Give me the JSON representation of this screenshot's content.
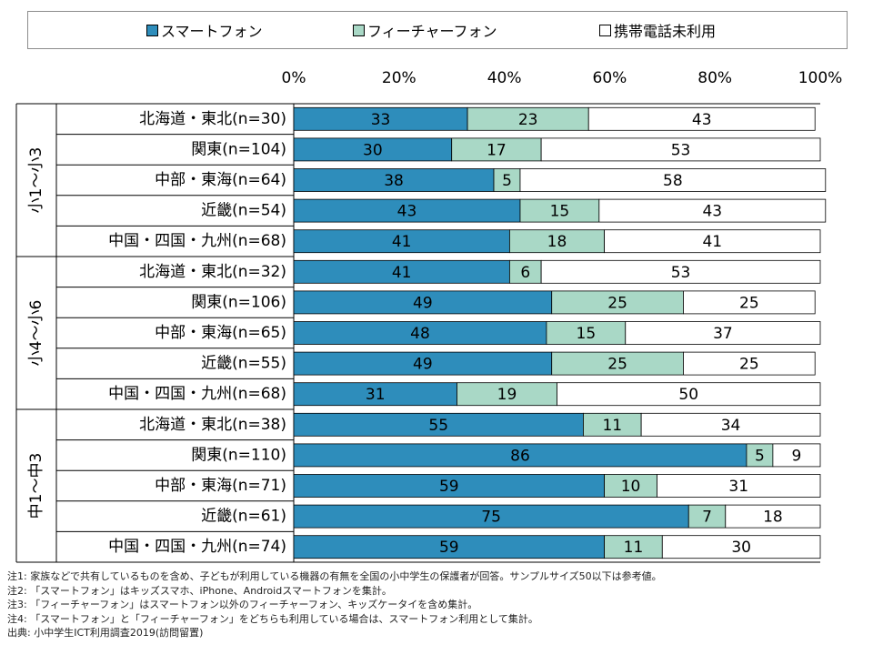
{
  "legend": [
    {
      "label": "スマートフォン",
      "color": "#2e8dbb"
    },
    {
      "label": "フィーチャーフォン",
      "color": "#a9d8c6"
    },
    {
      "label": "携帯電話未利用",
      "color": "#ffffff"
    }
  ],
  "axis_ticks": [
    "0%",
    "20%",
    "40%",
    "60%",
    "80%",
    "100%"
  ],
  "groups": [
    "小1～小3",
    "小4～小6",
    "中1～中3"
  ],
  "chart_data": {
    "type": "bar",
    "orientation": "horizontal",
    "stacked": true,
    "xlim": [
      0,
      100
    ],
    "categories": [
      "北海道・東北(n=30)",
      "関東(n=104)",
      "中部・東海(n=64)",
      "近畿(n=54)",
      "中国・四国・九州(n=68)",
      "北海道・東北(n=32)",
      "関東(n=106)",
      "中部・東海(n=65)",
      "近畿(n=55)",
      "中国・四国・九州(n=68)",
      "北海道・東北(n=38)",
      "関東(n=110)",
      "中部・東海(n=71)",
      "近畿(n=61)",
      "中国・四国・九州(n=74)"
    ],
    "group_of_row": [
      0,
      0,
      0,
      0,
      0,
      1,
      1,
      1,
      1,
      1,
      2,
      2,
      2,
      2,
      2
    ],
    "series": [
      {
        "name": "スマートフォン",
        "values": [
          33,
          30,
          38,
          43,
          41,
          41,
          49,
          48,
          49,
          31,
          55,
          86,
          59,
          75,
          59
        ]
      },
      {
        "name": "フィーチャーフォン",
        "values": [
          23,
          17,
          5,
          15,
          18,
          6,
          25,
          15,
          25,
          19,
          11,
          5,
          10,
          7,
          11
        ]
      },
      {
        "name": "携帯電話未利用",
        "values": [
          43,
          53,
          58,
          43,
          41,
          53,
          25,
          37,
          25,
          50,
          34,
          9,
          31,
          18,
          30
        ]
      }
    ]
  },
  "notes": [
    "注1: 家族などで共有しているものを含め、子どもが利用している機器の有無を全国の小中学生の保護者が回答。サンプルサイズ50以下は参考値。",
    "注2: 「スマートフォン」はキッズスマホ、iPhone、Androidスマートフォンを集計。",
    "注3: 「フィーチャーフォン」はスマートフォン以外のフィーチャーフォン、キッズケータイを含め集計。",
    "注4: 「スマートフォン」と「フィーチャーフォン」をどちらも利用している場合は、スマートフォン利用として集計。",
    "出典: 小中学生ICT利用調査2019(訪問留置)"
  ]
}
